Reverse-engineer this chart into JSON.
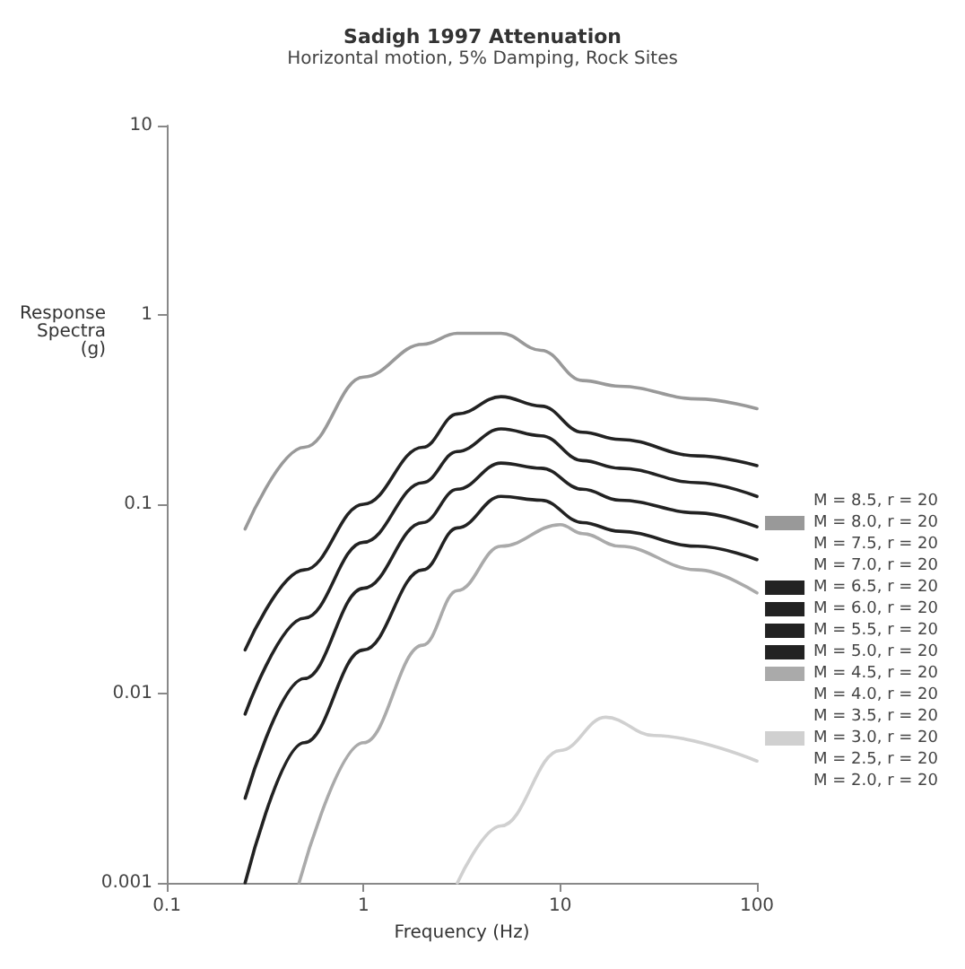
{
  "chart_data": {
    "type": "line",
    "title": "Sadigh 1997 Attenuation",
    "subtitle": "Horizontal motion, 5% Damping, Rock Sites",
    "xlabel": "Frequency (Hz)",
    "ylabel": "Response Spectra (g)",
    "log": "xy",
    "xlim": [
      0.1,
      100
    ],
    "ylim": [
      0.001,
      10
    ],
    "xticks": [
      0.1,
      1,
      10,
      100
    ],
    "yticks": [
      0.001,
      0.01,
      0.1,
      1,
      10
    ],
    "grid": false,
    "legend": "right",
    "marker": "none",
    "line_style": "solid",
    "series": [
      {
        "name": "M = 8.5, r = 20"
      },
      {
        "name": "M = 8.0, r = 20",
        "color": "#999999",
        "x": [
          0.25,
          0.5,
          1,
          2,
          3,
          5,
          8,
          13,
          20,
          50,
          100
        ],
        "values": [
          0.074,
          0.2,
          0.47,
          0.7,
          0.8,
          0.8,
          0.65,
          0.45,
          0.42,
          0.36,
          0.32
        ]
      },
      {
        "name": "M = 7.5, r = 20"
      },
      {
        "name": "M = 7.0, r = 20"
      },
      {
        "name": "M = 6.5, r = 20",
        "color": "#222222",
        "x": [
          0.25,
          0.5,
          1,
          2,
          3,
          5,
          8,
          13,
          20,
          50,
          100
        ],
        "values": [
          0.017,
          0.045,
          0.1,
          0.2,
          0.3,
          0.37,
          0.33,
          0.24,
          0.22,
          0.18,
          0.16
        ]
      },
      {
        "name": "M = 6.0, r = 20",
        "color": "#222222",
        "x": [
          0.25,
          0.5,
          1,
          2,
          3,
          5,
          8,
          13,
          20,
          50,
          100
        ],
        "values": [
          0.0078,
          0.025,
          0.063,
          0.13,
          0.19,
          0.25,
          0.23,
          0.17,
          0.155,
          0.13,
          0.11
        ]
      },
      {
        "name": "M = 5.5, r = 20",
        "color": "#222222",
        "x": [
          0.25,
          0.5,
          1,
          2,
          3,
          5,
          8,
          13,
          20,
          50,
          100
        ],
        "values": [
          0.0028,
          0.012,
          0.036,
          0.08,
          0.12,
          0.165,
          0.155,
          0.12,
          0.105,
          0.09,
          0.076
        ]
      },
      {
        "name": "M = 5.0, r = 20",
        "color": "#222222",
        "x": [
          0.25,
          0.5,
          1,
          2,
          3,
          5,
          8,
          13,
          20,
          50,
          100
        ],
        "values": [
          0.001,
          0.0055,
          0.017,
          0.045,
          0.075,
          0.11,
          0.105,
          0.08,
          0.072,
          0.06,
          0.051
        ]
      },
      {
        "name": "M = 4.5, r = 20",
        "color": "#aaaaaa",
        "x": [
          0.47,
          1,
          2,
          3,
          5,
          10,
          13,
          20,
          50,
          100
        ],
        "values": [
          0.001,
          0.0055,
          0.018,
          0.035,
          0.06,
          0.078,
          0.07,
          0.06,
          0.045,
          0.034
        ]
      },
      {
        "name": "M = 4.0, r = 20"
      },
      {
        "name": "M = 3.5, r = 20"
      },
      {
        "name": "M = 3.0, r = 20",
        "color": "#d0d0d0",
        "x": [
          3,
          5,
          10,
          17,
          30,
          100
        ],
        "values": [
          0.001,
          0.002,
          0.005,
          0.0075,
          0.006,
          0.0044
        ]
      },
      {
        "name": "M = 2.5, r = 20"
      },
      {
        "name": "M = 2.0, r = 20"
      }
    ]
  }
}
